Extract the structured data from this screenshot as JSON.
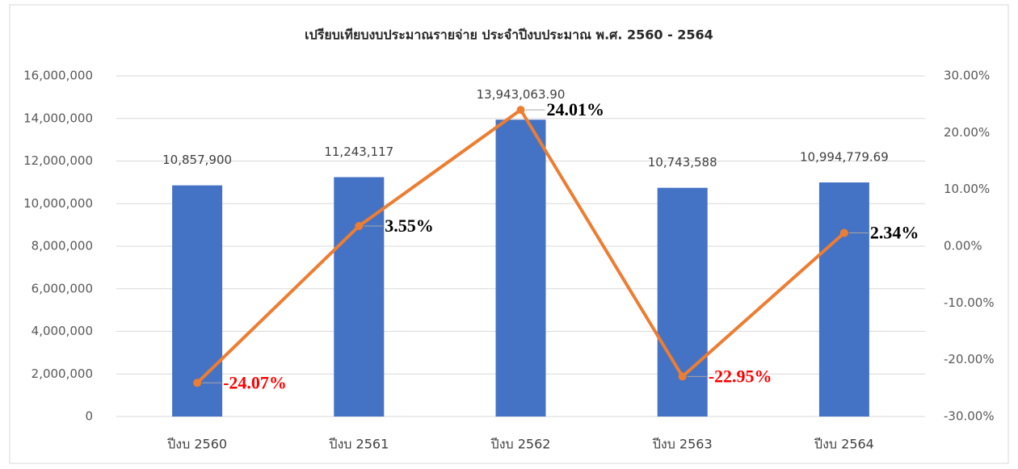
{
  "chart_data": {
    "type": "bar_line",
    "title": "เปรียบเทียบงบประมาณรายจ่าย ประจำปีงบประมาณ พ.ศ. 2560 - 2564",
    "categories": [
      "ปีงบ 2560",
      "ปีงบ 2561",
      "ปีงบ 2562",
      "ปีงบ 2563",
      "ปีงบ 2564"
    ],
    "series": [
      {
        "type": "bar",
        "color": "#4472c4",
        "values": [
          10857900,
          11243117,
          13943063.9,
          10743588,
          10994779.69
        ],
        "value_labels": [
          "10,857,900",
          "11,243,117",
          "13,943,063.90",
          "10,743,588",
          "10,994,779.69"
        ]
      },
      {
        "type": "line",
        "axis": "y2",
        "color": "#ed7d31",
        "values": [
          -24.07,
          3.55,
          24.01,
          -22.95,
          2.34
        ],
        "value_labels": [
          "-24.07%",
          "3.55%",
          "24.01%",
          "-22.95%",
          "2.34%"
        ],
        "value_label_colors": [
          "#ff0000",
          "#000000",
          "#000000",
          "#ff0000",
          "#000000"
        ]
      }
    ],
    "ylim": [
      0,
      16000000
    ],
    "yticks": [
      0,
      {
        "value": 2000000,
        "label": "2,000,000"
      },
      {
        "value": 4000000,
        "label": "4,000,000"
      },
      {
        "value": 6000000,
        "label": "6,000,000"
      },
      {
        "value": 8000000,
        "label": "8,000,000"
      },
      {
        "value": 10000000,
        "label": "10,000,000"
      },
      {
        "value": 12000000,
        "label": "12,000,000"
      },
      {
        "value": 14000000,
        "label": "14,000,000"
      },
      {
        "value": 16000000,
        "label": "16,000,000"
      }
    ],
    "y2lim": [
      -30,
      30
    ],
    "y2ticks": [
      {
        "value": -30,
        "label": "-30.00%"
      },
      {
        "value": -20,
        "label": "-20.00%"
      },
      {
        "value": -10,
        "label": "-10.00%"
      },
      {
        "value": 0,
        "label": "0.00%"
      },
      {
        "value": 10,
        "label": "10.00%"
      },
      {
        "value": 20,
        "label": "20.00%"
      },
      {
        "value": 30,
        "label": "30.00%"
      }
    ],
    "grid": true
  }
}
